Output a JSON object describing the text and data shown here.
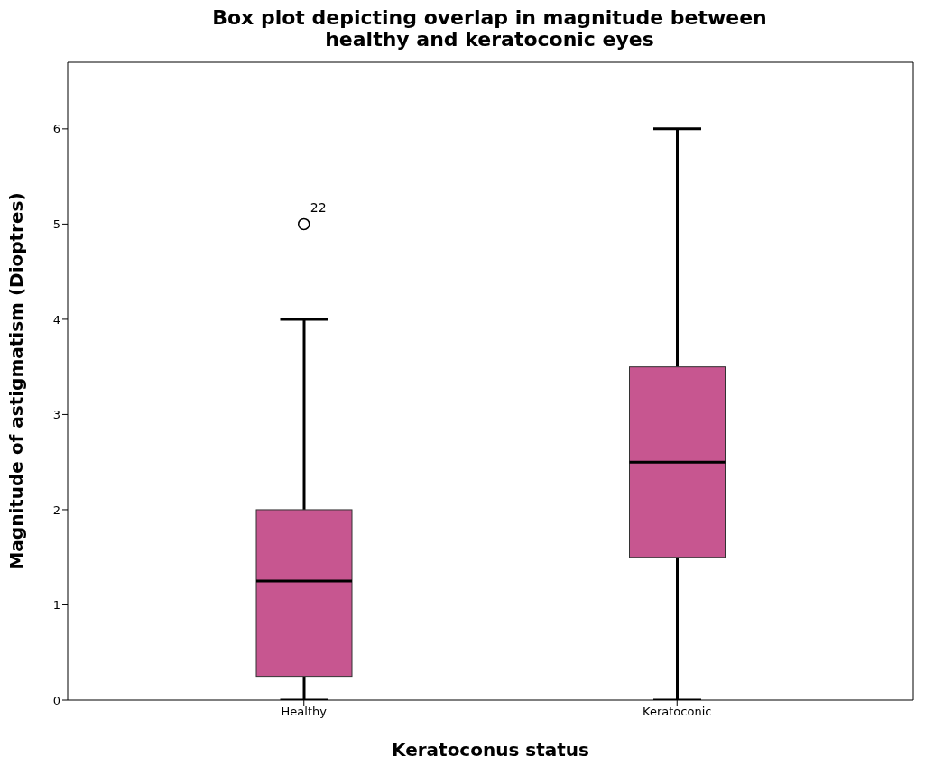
{
  "chart_data": {
    "type": "box",
    "title": "Box plot depicting overlap in magnitude between healthy and keratoconic eyes",
    "xlabel": "Keratoconus status",
    "ylabel": "Magnitude of astigmatism (Dioptres)",
    "categories": [
      "Healthy",
      "Keratoconic"
    ],
    "color": "#c75690",
    "boxes": [
      {
        "low": 0,
        "q1": 0.25,
        "median": 1.25,
        "q3": 2,
        "high": 4,
        "outliers": [
          5
        ]
      },
      {
        "low": 0,
        "q1": 1.5,
        "median": 2.5,
        "q3": 3.5,
        "high": 6
      }
    ],
    "ylim": [
      0,
      6.7
    ],
    "yticks": [
      0,
      1,
      2,
      3,
      4,
      5,
      6
    ],
    "grid": false,
    "marker": "circle",
    "annotations": [
      "22"
    ]
  }
}
